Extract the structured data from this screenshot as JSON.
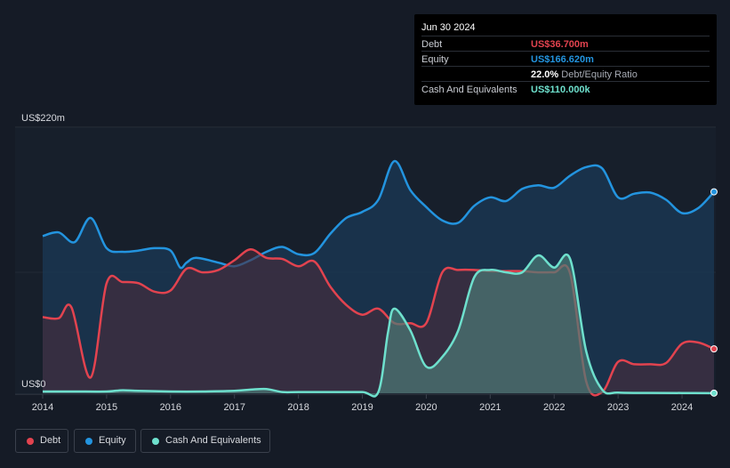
{
  "tooltip": {
    "date": "Jun 30 2024",
    "rows": {
      "debt": {
        "label": "Debt",
        "value": "US$36.700m"
      },
      "equity": {
        "label": "Equity",
        "value": "US$166.620m"
      },
      "ratio": {
        "value": "22.0%",
        "label": "Debt/Equity Ratio"
      },
      "cash": {
        "label": "Cash And Equivalents",
        "value": "US$110.000k"
      }
    }
  },
  "legend": {
    "debt": "Debt",
    "equity": "Equity",
    "cash": "Cash And Equivalents"
  },
  "colors": {
    "debt": "#e2434f",
    "equity": "#2394df",
    "cash": "#6ee0cd"
  },
  "chart_data": {
    "type": "area",
    "ylabel_top": "US$220m",
    "ylabel_bottom": "US$0",
    "ylim": [
      0,
      220
    ],
    "xlim": [
      2014,
      2024.5
    ],
    "x_ticks": [
      "2014",
      "2015",
      "2016",
      "2017",
      "2018",
      "2019",
      "2020",
      "2021",
      "2022",
      "2023",
      "2024"
    ],
    "series": [
      {
        "name": "Equity",
        "points": [
          [
            2014,
            130
          ],
          [
            2014.25,
            133
          ],
          [
            2014.5,
            125
          ],
          [
            2014.75,
            145
          ],
          [
            2015,
            120
          ],
          [
            2015.25,
            117
          ],
          [
            2015.5,
            118
          ],
          [
            2015.75,
            120
          ],
          [
            2016,
            118
          ],
          [
            2016.15,
            104
          ],
          [
            2016.25,
            108
          ],
          [
            2016.4,
            112
          ],
          [
            2016.75,
            108
          ],
          [
            2017,
            105
          ],
          [
            2017.25,
            110
          ],
          [
            2017.5,
            117
          ],
          [
            2017.75,
            121
          ],
          [
            2018,
            115
          ],
          [
            2018.25,
            116
          ],
          [
            2018.5,
            132
          ],
          [
            2018.75,
            145
          ],
          [
            2019,
            150
          ],
          [
            2019.25,
            160
          ],
          [
            2019.5,
            192
          ],
          [
            2019.75,
            168
          ],
          [
            2020,
            154
          ],
          [
            2020.25,
            143
          ],
          [
            2020.5,
            141
          ],
          [
            2020.75,
            155
          ],
          [
            2021,
            162
          ],
          [
            2021.25,
            159
          ],
          [
            2021.5,
            169
          ],
          [
            2021.75,
            172
          ],
          [
            2022,
            170
          ],
          [
            2022.25,
            180
          ],
          [
            2022.5,
            187
          ],
          [
            2022.75,
            186
          ],
          [
            2023,
            162
          ],
          [
            2023.25,
            165
          ],
          [
            2023.5,
            166
          ],
          [
            2023.75,
            160
          ],
          [
            2024,
            149
          ],
          [
            2024.25,
            153
          ],
          [
            2024.5,
            166.6
          ]
        ]
      },
      {
        "name": "Debt",
        "points": [
          [
            2014,
            63
          ],
          [
            2014.25,
            62
          ],
          [
            2014.45,
            71
          ],
          [
            2014.75,
            13
          ],
          [
            2015,
            91
          ],
          [
            2015.25,
            92
          ],
          [
            2015.5,
            91
          ],
          [
            2015.75,
            84
          ],
          [
            2016,
            85
          ],
          [
            2016.25,
            103
          ],
          [
            2016.5,
            100
          ],
          [
            2016.75,
            102
          ],
          [
            2017,
            110
          ],
          [
            2017.25,
            119
          ],
          [
            2017.5,
            112
          ],
          [
            2017.75,
            111
          ],
          [
            2018,
            105
          ],
          [
            2018.25,
            109
          ],
          [
            2018.5,
            88
          ],
          [
            2018.75,
            73
          ],
          [
            2019,
            65
          ],
          [
            2019.25,
            70
          ],
          [
            2019.5,
            58
          ],
          [
            2019.75,
            58
          ],
          [
            2020,
            58
          ],
          [
            2020.25,
            100
          ],
          [
            2020.5,
            102
          ],
          [
            2020.75,
            102
          ],
          [
            2021,
            101
          ],
          [
            2021.25,
            101
          ],
          [
            2021.5,
            101
          ],
          [
            2021.75,
            100
          ],
          [
            2022,
            100
          ],
          [
            2022.25,
            99
          ],
          [
            2022.5,
            10
          ],
          [
            2022.75,
            1
          ],
          [
            2023,
            26
          ],
          [
            2023.25,
            24
          ],
          [
            2023.5,
            24
          ],
          [
            2023.75,
            25
          ],
          [
            2024,
            41
          ],
          [
            2024.25,
            42
          ],
          [
            2024.5,
            36.7
          ]
        ]
      },
      {
        "name": "Cash And Equivalents",
        "points": [
          [
            2014,
            1.5
          ],
          [
            2014.5,
            1.5
          ],
          [
            2015,
            1.5
          ],
          [
            2015.25,
            2.5
          ],
          [
            2015.5,
            2
          ],
          [
            2016,
            1.5
          ],
          [
            2016.5,
            1.5
          ],
          [
            2017,
            2
          ],
          [
            2017.25,
            3
          ],
          [
            2017.5,
            3.5
          ],
          [
            2017.75,
            1
          ],
          [
            2018,
            1
          ],
          [
            2018.5,
            1
          ],
          [
            2019,
            1
          ],
          [
            2019.25,
            1
          ],
          [
            2019.4,
            50
          ],
          [
            2019.5,
            70
          ],
          [
            2019.75,
            52
          ],
          [
            2020,
            22
          ],
          [
            2020.25,
            30
          ],
          [
            2020.5,
            52
          ],
          [
            2020.75,
            96
          ],
          [
            2021,
            102
          ],
          [
            2021.25,
            100
          ],
          [
            2021.5,
            100
          ],
          [
            2021.75,
            114
          ],
          [
            2022,
            104
          ],
          [
            2022.25,
            111
          ],
          [
            2022.5,
            35
          ],
          [
            2022.75,
            3
          ],
          [
            2023,
            0.5
          ],
          [
            2023.5,
            0.3
          ],
          [
            2024,
            0.2
          ],
          [
            2024.5,
            0.11
          ]
        ]
      }
    ]
  }
}
